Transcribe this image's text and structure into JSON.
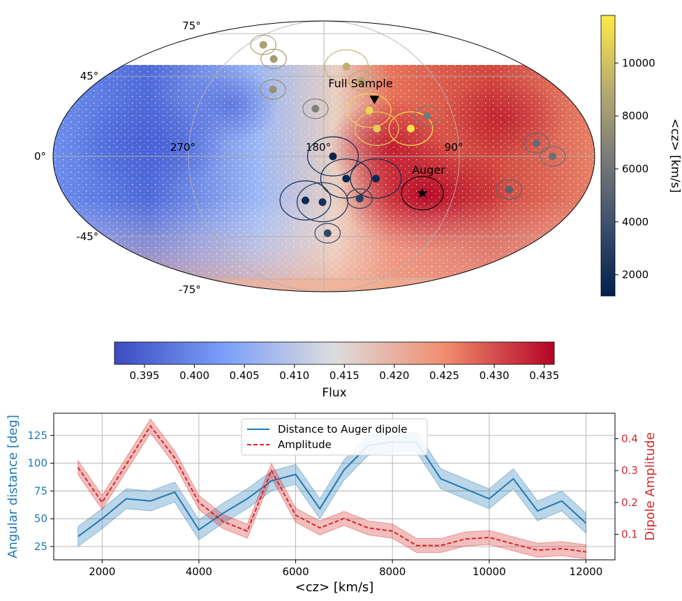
{
  "colors": {
    "flux_low": "#3b4cc0",
    "flux_mid": "#dddddd",
    "flux_high": "#b40426",
    "cz_low": "#00204c",
    "cz_mid": "#7c7b78",
    "cz_high": "#ffe945",
    "distance_line": "#1f77b4",
    "amplitude_line": "#d62728"
  },
  "sky_map": {
    "type": "mollweide-skymap",
    "lat_labels": [
      "75°",
      "45°",
      "0°",
      "-45°",
      "-75°"
    ],
    "lon_labels": [
      "270°",
      "180°",
      "90°"
    ],
    "annotations": {
      "full_sample": "Full Sample",
      "auger": "Auger"
    },
    "markers": [
      {
        "name": "Full Sample dipole",
        "lon": 143,
        "lat": 31,
        "symbol": "triangle"
      },
      {
        "name": "Auger dipole",
        "lon": 112,
        "lat": -20,
        "symbol": "star"
      }
    ],
    "dipoles": [
      {
        "lon": 251,
        "lat": 66,
        "cz": 8500
      },
      {
        "lon": 228,
        "lat": 56,
        "cz": 8200
      },
      {
        "lon": 219,
        "lat": 37,
        "cz": 7600
      },
      {
        "lon": 186,
        "lat": 26,
        "cz": 6800
      },
      {
        "lon": 160,
        "lat": 51,
        "cz": 9200
      },
      {
        "lon": 150,
        "lat": 42,
        "cz": 8800
      },
      {
        "lon": 148,
        "lat": 25,
        "cz": 11000
      },
      {
        "lon": 144,
        "lat": 15,
        "cz": 10500
      },
      {
        "lon": 121,
        "lat": 15,
        "cz": 11600
      },
      {
        "lon": 108,
        "lat": 22,
        "cz": 6300
      },
      {
        "lon": 38,
        "lat": 7,
        "cz": 5500
      },
      {
        "lon": 28,
        "lat": 0,
        "cz": 5800
      },
      {
        "lon": 53,
        "lat": -18,
        "cz": 5000
      },
      {
        "lon": 174,
        "lat": 0,
        "cz": 1400
      },
      {
        "lon": 165,
        "lat": -12,
        "cz": 1500
      },
      {
        "lon": 145,
        "lat": -12,
        "cz": 1700
      },
      {
        "lon": 193,
        "lat": -24,
        "cz": 1800
      },
      {
        "lon": 181,
        "lat": -25,
        "cz": 2200
      },
      {
        "lon": 155,
        "lat": -23,
        "cz": 3000
      },
      {
        "lon": 177,
        "lat": -43,
        "cz": 3400
      }
    ],
    "flux_colorbar": {
      "label": "Flux",
      "range": [
        0.392,
        0.436
      ],
      "ticks": [
        "0.395",
        "0.400",
        "0.405",
        "0.410",
        "0.415",
        "0.420",
        "0.425",
        "0.430",
        "0.435"
      ]
    },
    "cz_colorbar": {
      "label": "<cz> [km/s]",
      "range": [
        1200,
        11800
      ],
      "ticks": [
        "2000",
        "4000",
        "6000",
        "8000",
        "10000"
      ]
    }
  },
  "chart_data": {
    "type": "line",
    "xlabel": "<cz> [km/s]",
    "ylabel_left": "Angular distance [deg]",
    "ylabel_right": "Dipole Amplitude",
    "xlim": [
      1000,
      12600
    ],
    "ylim_left": [
      13,
      145
    ],
    "ylim_right": [
      0.02,
      0.48
    ],
    "x_ticks": [
      "2000",
      "4000",
      "6000",
      "8000",
      "10000",
      "12000"
    ],
    "y_left_ticks": [
      "25",
      "50",
      "75",
      "100",
      "125"
    ],
    "y_right_ticks": [
      "0.1",
      "0.2",
      "0.3",
      "0.4"
    ],
    "legend": {
      "placement": "upper-center",
      "entries": [
        "Distance to Auger dipole",
        "Amplitude"
      ]
    },
    "x": [
      1500,
      2000,
      2500,
      3000,
      3500,
      4000,
      4500,
      5000,
      5500,
      6000,
      6500,
      7000,
      7500,
      8000,
      8500,
      9000,
      9500,
      10000,
      10500,
      11000,
      11500,
      12000
    ],
    "series": [
      {
        "name": "Distance to Auger dipole",
        "axis": "left",
        "style": "solid",
        "values": [
          34,
          50,
          68,
          66,
          74,
          40,
          55,
          68,
          84,
          90,
          59,
          94,
          116,
          119,
          119,
          86,
          77,
          68,
          86,
          57,
          66,
          46
        ],
        "band": 9
      },
      {
        "name": "Amplitude",
        "axis": "right",
        "style": "dashed",
        "values": [
          0.31,
          0.2,
          0.32,
          0.44,
          0.34,
          0.2,
          0.14,
          0.11,
          0.3,
          0.16,
          0.12,
          0.15,
          0.12,
          0.11,
          0.065,
          0.065,
          0.085,
          0.09,
          0.07,
          0.05,
          0.055,
          0.045
        ],
        "band": 0.022
      }
    ]
  }
}
